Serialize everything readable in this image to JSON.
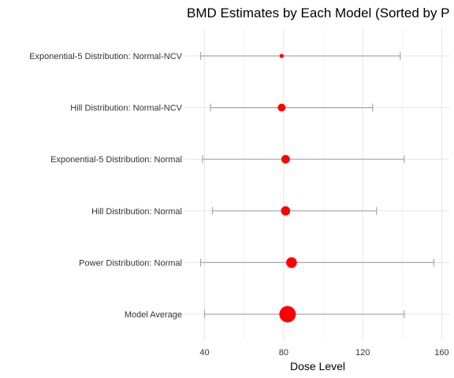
{
  "chart_data": {
    "type": "scatter",
    "title": "BMD Estimates by Each Model (Sorted by P",
    "xlabel": "Dose Level",
    "ylabel": "",
    "xlim": [
      32,
      164
    ],
    "x_ticks": [
      "40",
      "80",
      "120",
      "160"
    ],
    "grid": true,
    "legend": "none",
    "point_color": "#ff0000",
    "errorbar_color": "#a6a6a6",
    "categories": [
      "Exponential-5 Distribution: Normal-NCV",
      "Hill Distribution: Normal-NCV",
      "Exponential-5 Distribution: Normal",
      "Hill Distribution: Normal",
      "Power Distribution: Normal",
      "Model Average"
    ],
    "bmd": [
      79,
      79,
      81,
      81,
      84,
      82
    ],
    "bmdl": [
      38,
      43,
      39,
      44,
      38,
      40
    ],
    "bmdu": [
      139,
      125,
      141,
      127,
      156,
      141
    ],
    "weight": [
      0.02,
      0.12,
      0.14,
      0.16,
      0.2,
      0.36
    ]
  }
}
